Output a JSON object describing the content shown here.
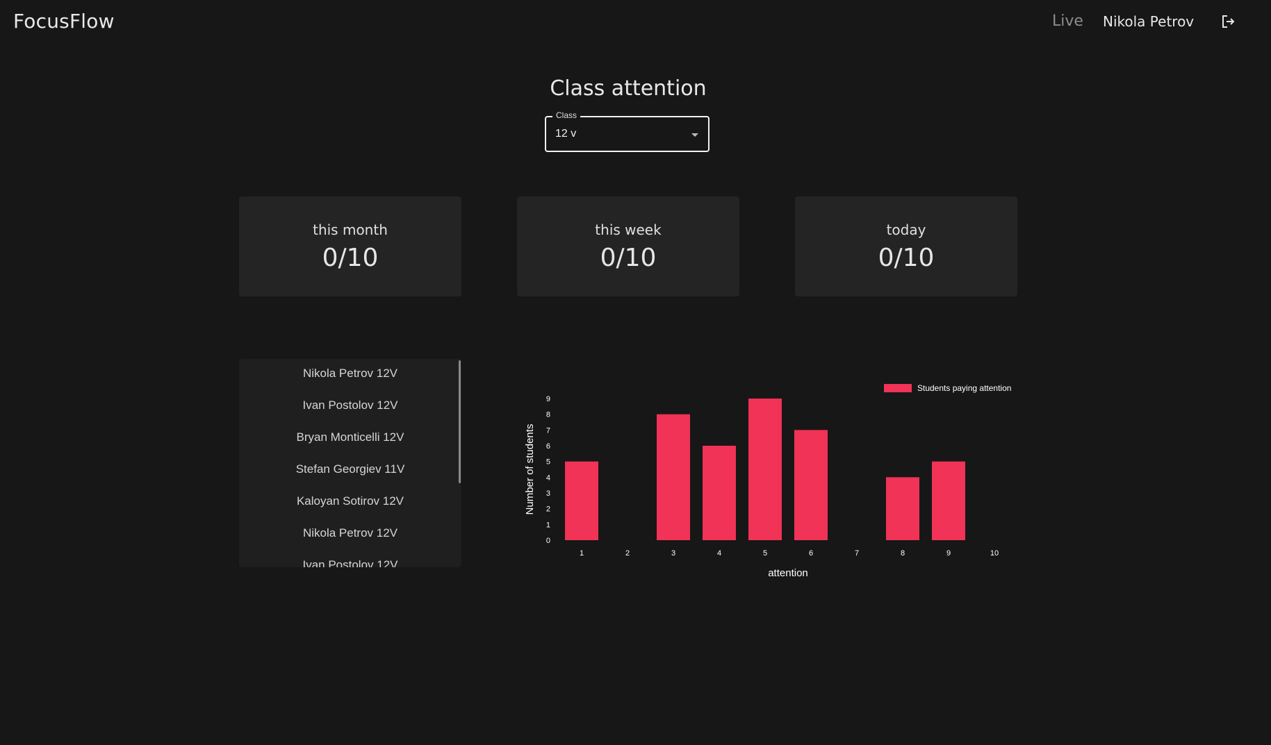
{
  "header": {
    "brand": "FocusFlow",
    "live_label": "Live",
    "user_name": "Nikola Petrov",
    "logout_icon": "logout-icon"
  },
  "page": {
    "title": "Class attention"
  },
  "class_select": {
    "label": "Class",
    "value": "12 v"
  },
  "stats": [
    {
      "label": "this month",
      "value": "0/10"
    },
    {
      "label": "this week",
      "value": "0/10"
    },
    {
      "label": "today",
      "value": "0/10"
    }
  ],
  "students": [
    "Nikola Petrov 12V",
    "Ivan Postolov 12V",
    "Bryan Monticelli 12V",
    "Stefan Georgiev 11V",
    "Kaloyan Sotirov 12V",
    "Nikola Petrov 12V",
    "Ivan Postolov 12V"
  ],
  "chart_data": {
    "type": "bar",
    "categories": [
      "1",
      "2",
      "3",
      "4",
      "5",
      "6",
      "7",
      "8",
      "9",
      "10"
    ],
    "series": [
      {
        "name": "Students paying attention",
        "values": [
          5,
          0,
          8,
          6,
          9,
          7,
          0,
          4,
          5,
          0
        ],
        "color": "#f03356"
      }
    ],
    "xlabel": "attention",
    "ylabel": "Number of students",
    "ylim": [
      0,
      9
    ],
    "yticks": [
      "0",
      "1",
      "2",
      "3",
      "4",
      "5",
      "6",
      "7",
      "8",
      "9"
    ],
    "grid": false,
    "legend": "top-right"
  }
}
